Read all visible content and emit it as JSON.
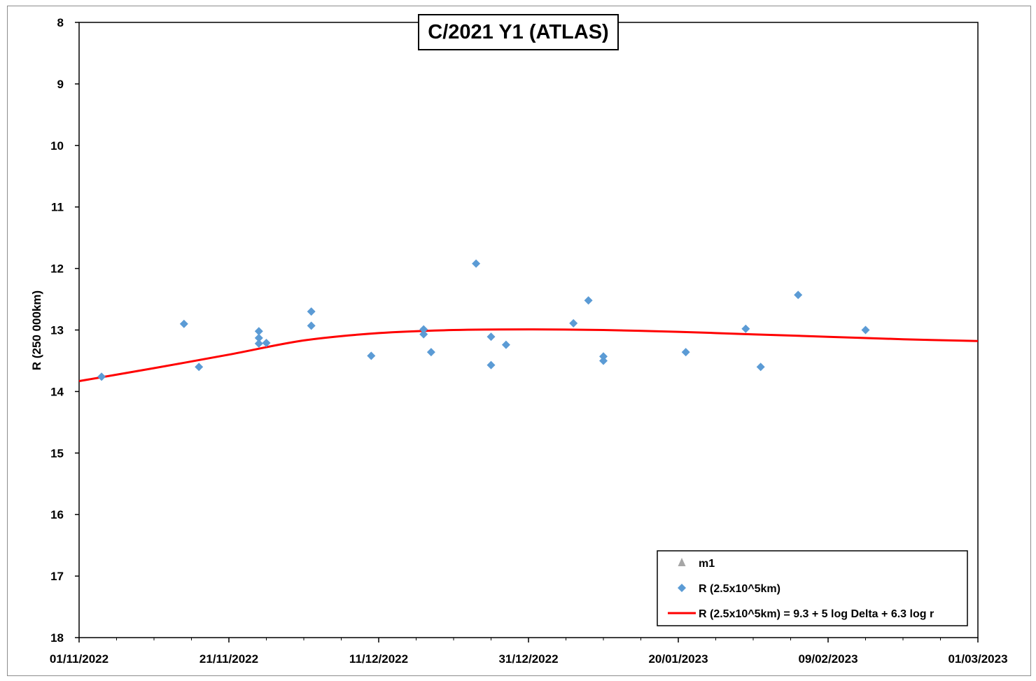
{
  "chart_data": {
    "type": "scatter",
    "title": "C/2021 Y1 (ATLAS)",
    "xlabel": "",
    "ylabel": "R (250 000km)",
    "x_type": "date",
    "xlim": [
      "2022-11-01",
      "2023-03-01"
    ],
    "ylim": [
      8,
      18
    ],
    "y_inverted": true,
    "grid": false,
    "legend_position": "bottom-right",
    "x_tick_labels": [
      "01/11/2022",
      "21/11/2022",
      "11/12/2022",
      "31/12/2022",
      "20/01/2023",
      "09/02/2023",
      "01/03/2023"
    ],
    "x_tick_values": [
      "2022-11-01",
      "2022-11-21",
      "2022-12-11",
      "2022-12-31",
      "2023-01-20",
      "2023-02-09",
      "2023-03-01"
    ],
    "y_tick_labels": [
      "8",
      "9",
      "10",
      "11",
      "12",
      "13",
      "14",
      "15",
      "16",
      "17",
      "18"
    ],
    "y_tick_values": [
      8,
      9,
      10,
      11,
      12,
      13,
      14,
      15,
      16,
      17,
      18
    ],
    "series": [
      {
        "name": "m1",
        "type": "scatter",
        "marker": "triangle",
        "color": "#a6a6a6",
        "points": []
      },
      {
        "name": "R (2.5x10^5km)",
        "type": "scatter",
        "marker": "diamond",
        "color": "#5b9bd5",
        "points": [
          {
            "x": "2022-11-04",
            "y": 13.76
          },
          {
            "x": "2022-11-15",
            "y": 12.9
          },
          {
            "x": "2022-11-17",
            "y": 13.6
          },
          {
            "x": "2022-11-25",
            "y": 13.02
          },
          {
            "x": "2022-11-25",
            "y": 13.13
          },
          {
            "x": "2022-11-25",
            "y": 13.22
          },
          {
            "x": "2022-11-26",
            "y": 13.21
          },
          {
            "x": "2022-12-02",
            "y": 12.7
          },
          {
            "x": "2022-12-02",
            "y": 12.93
          },
          {
            "x": "2022-12-10",
            "y": 13.42
          },
          {
            "x": "2022-12-17",
            "y": 12.99
          },
          {
            "x": "2022-12-17",
            "y": 13.07
          },
          {
            "x": "2022-12-18",
            "y": 13.36
          },
          {
            "x": "2022-12-24",
            "y": 11.92
          },
          {
            "x": "2022-12-26",
            "y": 13.57
          },
          {
            "x": "2022-12-26",
            "y": 13.11
          },
          {
            "x": "2022-12-28",
            "y": 13.24
          },
          {
            "x": "2023-01-06",
            "y": 12.89
          },
          {
            "x": "2023-01-08",
            "y": 12.52
          },
          {
            "x": "2023-01-10",
            "y": 13.43
          },
          {
            "x": "2023-01-10",
            "y": 13.5
          },
          {
            "x": "2023-01-21",
            "y": 13.36
          },
          {
            "x": "2023-01-29",
            "y": 12.98
          },
          {
            "x": "2023-01-31",
            "y": 13.6
          },
          {
            "x": "2023-02-05",
            "y": 12.43
          },
          {
            "x": "2023-02-14",
            "y": 13.0
          }
        ]
      },
      {
        "name": "R (2.5x10^5km) = 9.3 + 5 log Delta + 6.3 log r",
        "type": "line",
        "color": "#ff0000",
        "points": [
          {
            "x": "2022-11-01",
            "y": 13.83
          },
          {
            "x": "2022-11-11",
            "y": 13.62
          },
          {
            "x": "2022-11-21",
            "y": 13.4
          },
          {
            "x": "2022-12-01",
            "y": 13.17
          },
          {
            "x": "2022-12-11",
            "y": 13.05
          },
          {
            "x": "2022-12-21",
            "y": 13.0
          },
          {
            "x": "2022-12-31",
            "y": 12.99
          },
          {
            "x": "2023-01-10",
            "y": 13.0
          },
          {
            "x": "2023-01-20",
            "y": 13.03
          },
          {
            "x": "2023-01-30",
            "y": 13.07
          },
          {
            "x": "2023-02-09",
            "y": 13.11
          },
          {
            "x": "2023-02-19",
            "y": 13.15
          },
          {
            "x": "2023-03-01",
            "y": 13.18
          }
        ]
      }
    ]
  }
}
